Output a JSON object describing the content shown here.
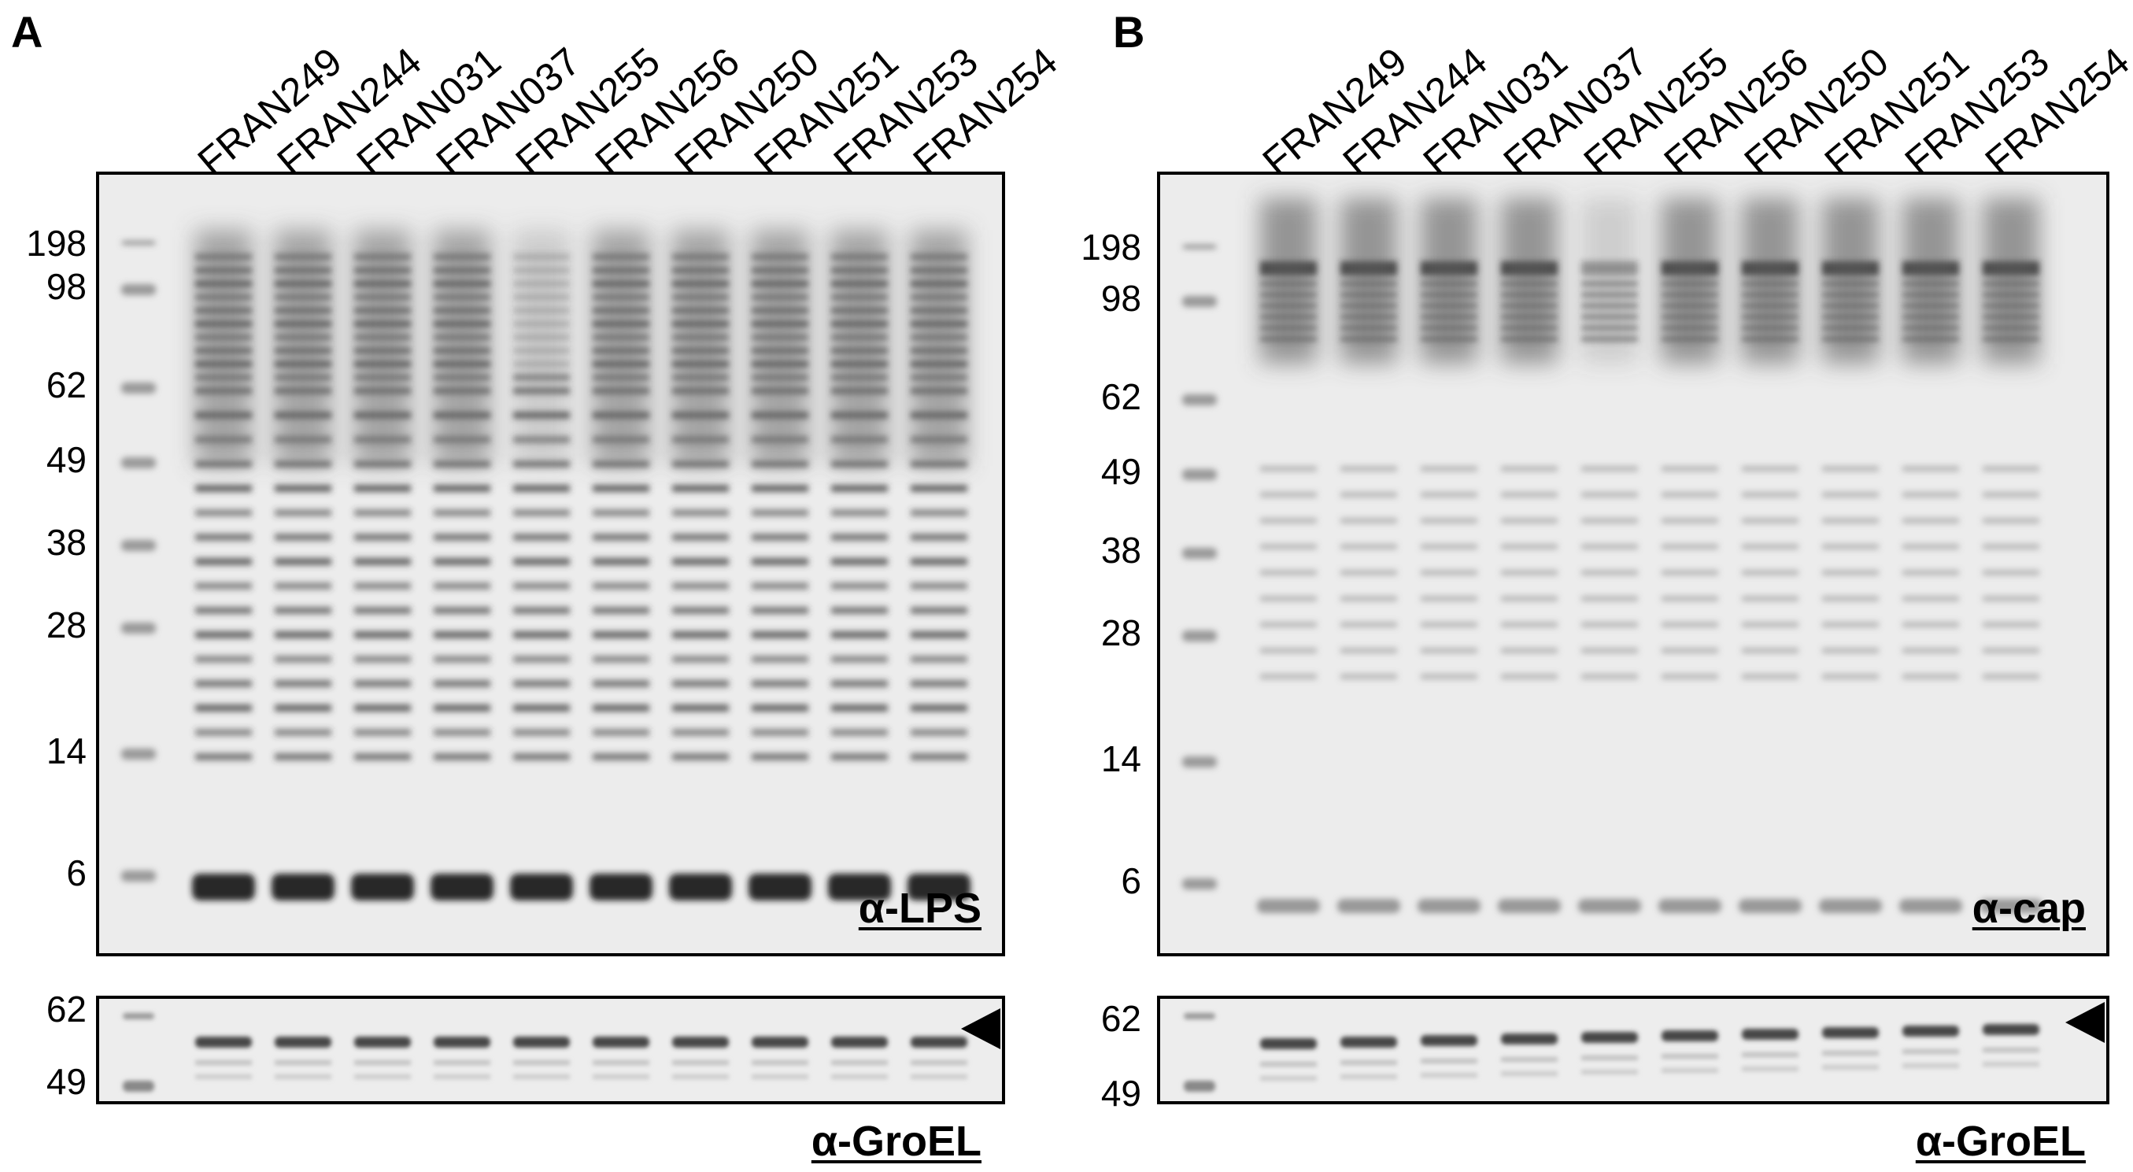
{
  "panels": [
    {
      "id": "A",
      "letter": "A",
      "lanes": [
        "FRAN249",
        "FRAN244",
        "FRAN031",
        "FRAN037",
        "FRAN255",
        "FRAN256",
        "FRAN250",
        "FRAN251",
        "FRAN253",
        "FRAN254"
      ],
      "main_markers": [
        "198",
        "98",
        "62",
        "49",
        "38",
        "28",
        "14",
        "6"
      ],
      "main_antibody": "α-LPS",
      "groel_markers": [
        "62",
        "49"
      ],
      "groel_antibody": "α-GroEL",
      "arrow": "arrowhead-icon"
    },
    {
      "id": "B",
      "letter": "B",
      "lanes": [
        "FRAN249",
        "FRAN244",
        "FRAN031",
        "FRAN037",
        "FRAN255",
        "FRAN256",
        "FRAN250",
        "FRAN251",
        "FRAN253",
        "FRAN254"
      ],
      "main_markers": [
        "198",
        "98",
        "62",
        "49",
        "38",
        "28",
        "14",
        "6"
      ],
      "main_antibody": "α-cap",
      "groel_markers": [
        "62",
        "49"
      ],
      "groel_antibody": "α-GroEL",
      "arrow": "arrowhead-icon"
    }
  ]
}
